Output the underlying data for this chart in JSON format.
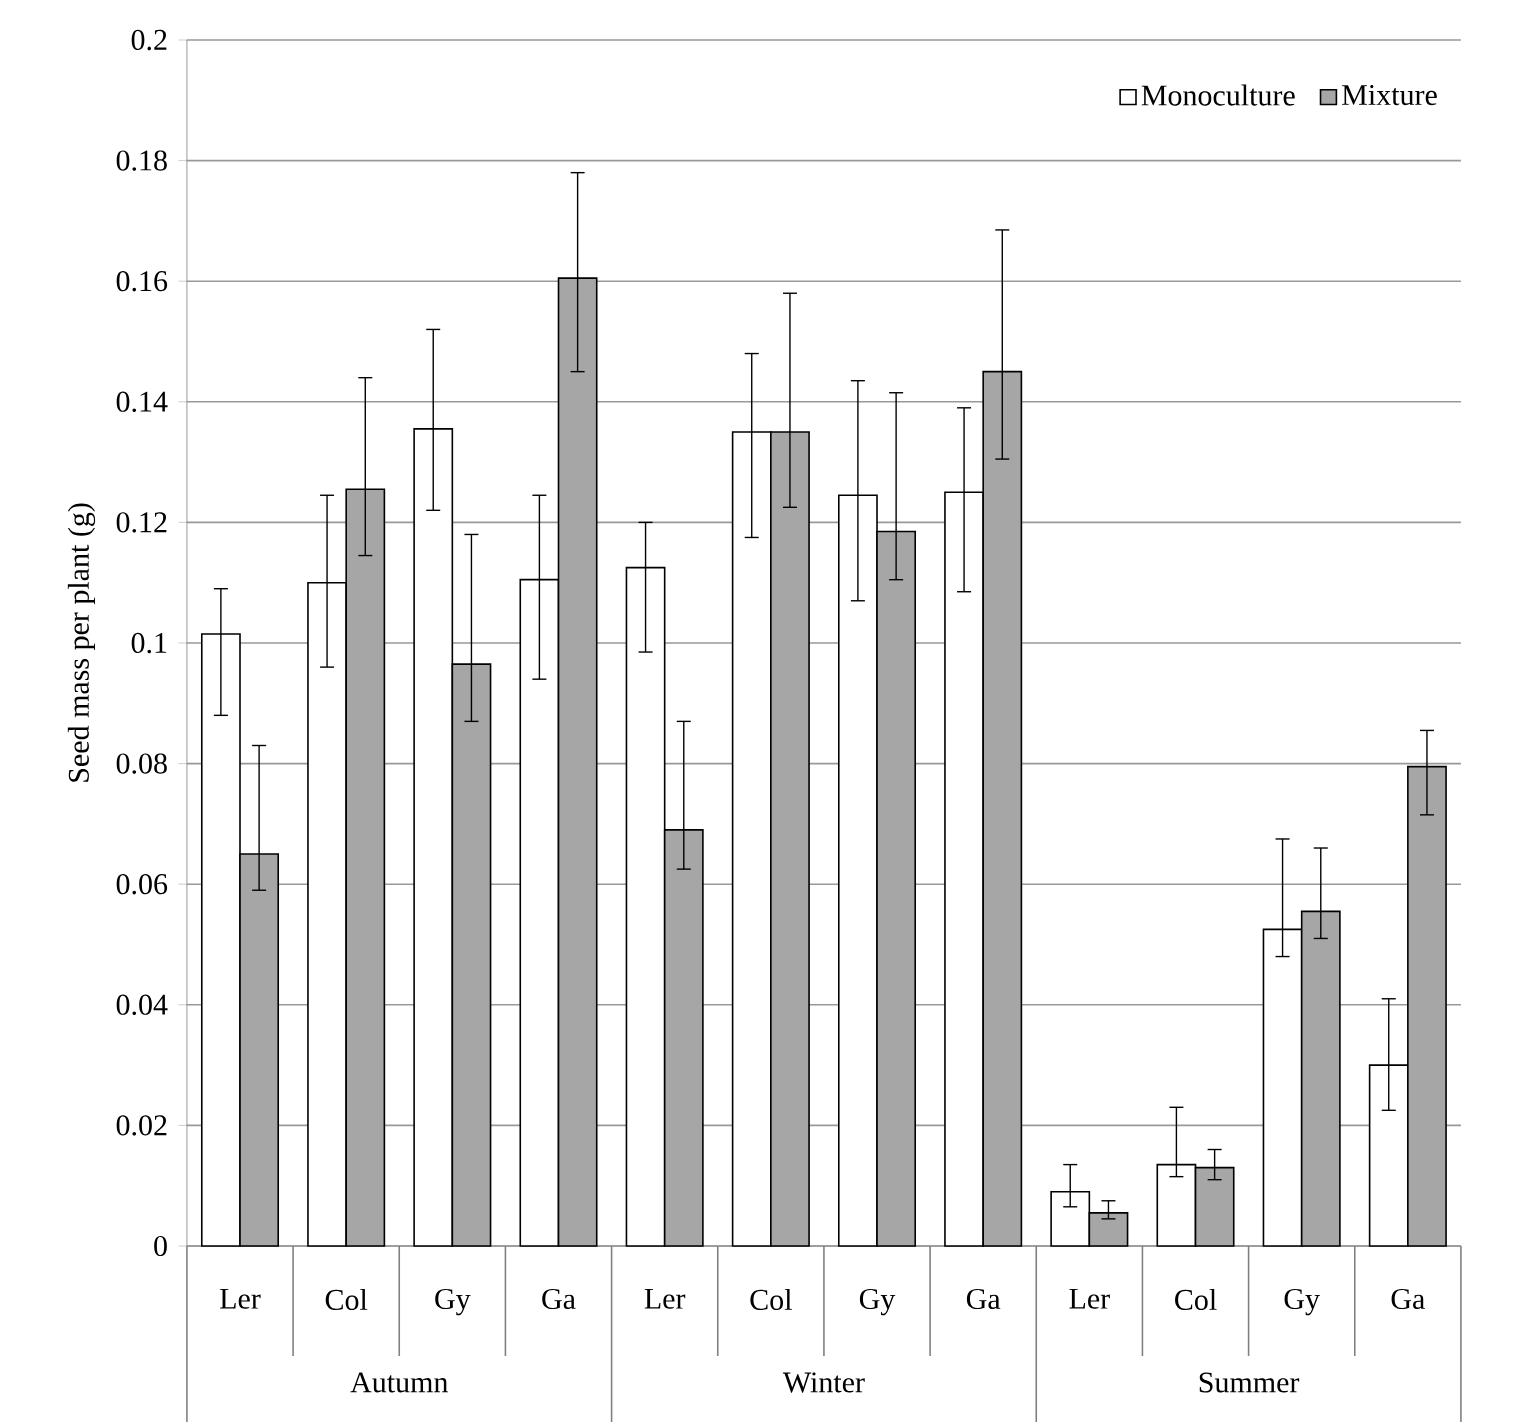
{
  "chart_data": {
    "type": "bar",
    "ylabel": "Seed mass per plant (g)",
    "categories": [
      "Ler",
      "Col",
      "Gy",
      "Ga",
      "Ler",
      "Col",
      "Gy",
      "Ga",
      "Ler",
      "Col",
      "Gy",
      "Ga"
    ],
    "annotations": [
      "Autumn",
      "Winter",
      "Summer"
    ],
    "series": [
      {
        "name": "Monoculture",
        "color": "#ffffff",
        "values": [
          0.1015,
          0.11,
          0.1355,
          0.1105,
          0.1125,
          0.135,
          0.1245,
          0.125,
          0.009,
          0.0135,
          0.0525,
          0.03
        ],
        "errors": [
          [
            0.088,
            0.109
          ],
          [
            0.096,
            0.1245
          ],
          [
            0.122,
            0.152
          ],
          [
            0.094,
            0.1245
          ],
          [
            0.0985,
            0.12
          ],
          [
            0.1175,
            0.148
          ],
          [
            0.107,
            0.1435
          ],
          [
            0.1085,
            0.139
          ],
          [
            0.0065,
            0.0135
          ],
          [
            0.0115,
            0.023
          ],
          [
            0.048,
            0.0675
          ],
          [
            0.0225,
            0.041
          ]
        ]
      },
      {
        "name": "Mixture",
        "color": "#a6a6a6",
        "values": [
          0.065,
          0.1255,
          0.0965,
          0.1605,
          0.069,
          0.135,
          0.1185,
          0.145,
          0.0055,
          0.013,
          0.0555,
          0.0795
        ],
        "errors": [
          [
            0.059,
            0.083
          ],
          [
            0.1145,
            0.144
          ],
          [
            0.087,
            0.118
          ],
          [
            0.145,
            0.178
          ],
          [
            0.0625,
            0.087
          ],
          [
            0.1225,
            0.158
          ],
          [
            0.1105,
            0.1415
          ],
          [
            0.1305,
            0.1685
          ],
          [
            0.0045,
            0.0075
          ],
          [
            0.011,
            0.016
          ],
          [
            0.051,
            0.066
          ],
          [
            0.0715,
            0.0855
          ]
        ]
      }
    ],
    "ylim": [
      0,
      0.2
    ],
    "yticks": [
      0,
      0.02,
      0.04,
      0.06,
      0.08,
      0.1,
      0.12,
      0.14,
      0.16,
      0.18,
      0.2
    ],
    "grid": "y",
    "legend": "top right"
  }
}
